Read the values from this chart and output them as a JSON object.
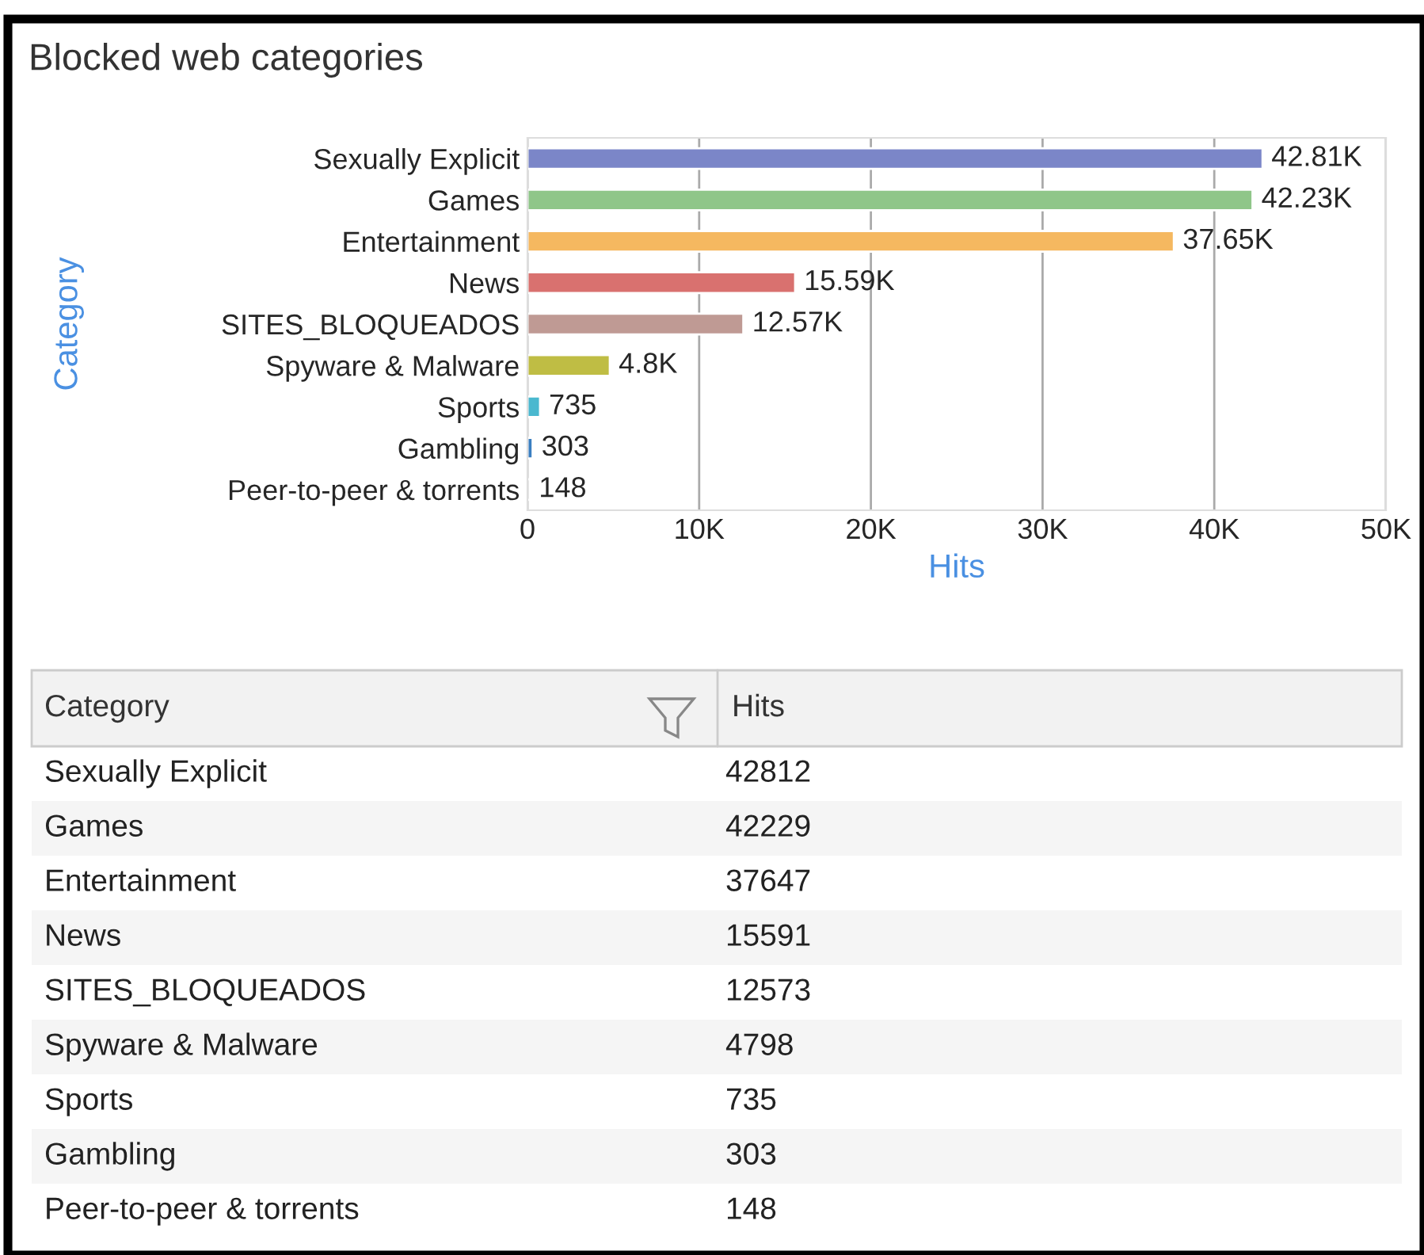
{
  "chart_data": {
    "type": "bar",
    "orientation": "horizontal",
    "title": "Blocked web categories",
    "xlabel": "Hits",
    "ylabel": "Category",
    "categories": [
      "Sexually Explicit",
      "Games",
      "Entertainment",
      "News",
      "SITES_BLOQUEADOS",
      "Spyware & Malware",
      "Sports",
      "Gambling",
      "Peer-to-peer & torrents"
    ],
    "values": [
      42812,
      42229,
      37647,
      15591,
      12573,
      4798,
      735,
      303,
      148
    ],
    "colors": [
      "#7b86c8",
      "#8fc689",
      "#f5b860",
      "#d9716f",
      "#bf9a94",
      "#bfbd44",
      "#4ab8cf",
      "#3a7fc1",
      "#c8c8c8"
    ],
    "value_labels": [
      "42.81K",
      "42.23K",
      "37.65K",
      "15.59K",
      "12.57K",
      "4.8K",
      "735",
      "303",
      "148"
    ],
    "annotations": [
      "Category",
      "Hits",
      "42812",
      "42229",
      "37647",
      "15591",
      "12573",
      "4798",
      "735",
      "303",
      "148"
    ],
    "xlim": [
      0,
      50000
    ],
    "xticks": [
      {
        "value": 0,
        "label": "0"
      },
      {
        "value": 10000,
        "label": "10K"
      },
      {
        "value": 20000,
        "label": "20K"
      },
      {
        "value": 30000,
        "label": "30K"
      },
      {
        "value": 40000,
        "label": "40K"
      },
      {
        "value": 50000,
        "label": "50K"
      }
    ],
    "grid": "x",
    "legend": false
  }
}
